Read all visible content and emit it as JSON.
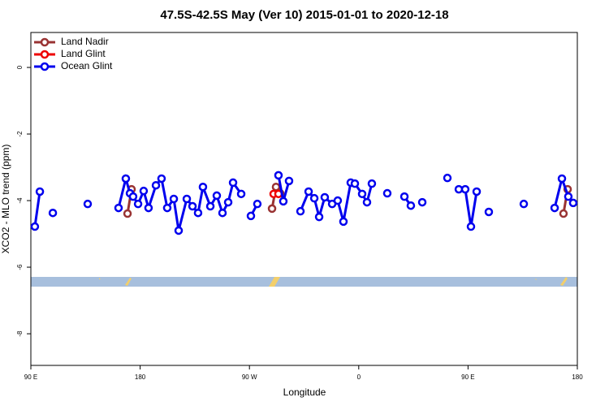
{
  "chart_data": {
    "type": "line",
    "title": "47.5S-42.5S May (Ver 10)   2015-01-01 to 2020-12-18",
    "x_label": "Longitude",
    "y_label": "XCO2 - MLO trend (ppm)",
    "xlim": [
      90,
      540
    ],
    "ylim": [
      -8.95,
      1.05
    ],
    "xticks": [
      {
        "value": 90,
        "label": "90 E"
      },
      {
        "value": 180,
        "label": "180"
      },
      {
        "value": 270,
        "label": "90 W"
      },
      {
        "value": 360,
        "label": "0"
      },
      {
        "value": 450,
        "label": "90 E"
      },
      {
        "value": 540,
        "label": "180"
      }
    ],
    "yticks": [
      0,
      -2,
      -4,
      -6,
      -8
    ],
    "legend": "top-left",
    "series": [
      {
        "name": "Land Nadir",
        "color": "#993333",
        "x": [
          169.6,
          172.9,
          null,
          288.6,
          291.9,
          295.3,
          null,
          528.6,
          532.0
        ],
        "values": [
          -4.39,
          -3.66,
          null,
          -4.24,
          -3.59,
          -3.78,
          null,
          -4.39,
          -3.66
        ]
      },
      {
        "name": "Land Glint",
        "color": "#ee0000",
        "x": [
          289.9,
          293.9
        ],
        "values": [
          -3.8,
          -3.8
        ]
      },
      {
        "name": "Ocean Glint",
        "color": "#0000ee",
        "x": [
          93.3,
          97.4,
          null,
          108.1,
          null,
          136.8,
          null,
          162.2,
          168.2,
          171.6,
          174.2,
          178.3,
          182.9,
          186.9,
          193.0,
          197.6,
          202.3,
          207.7,
          211.7,
          218.4,
          223.1,
          227.7,
          231.7,
          237.8,
          243.1,
          247.8,
          252.5,
          256.5,
          263.2,
          null,
          271.2,
          276.5,
          null,
          293.9,
          297.9,
          302.6,
          null,
          312.0,
          318.7,
          323.4,
          327.4,
          332.0,
          338.1,
          342.7,
          347.4,
          353.4,
          356.8,
          362.8,
          366.8,
          370.8,
          null,
          383.5,
          null,
          397.6,
          402.9,
          null,
          412.3,
          null,
          433.0,
          null,
          442.4,
          447.7,
          452.4,
          457.1,
          null,
          467.1,
          null,
          495.9,
          null,
          521.3,
          527.3,
          532.6,
          536.6
        ],
        "values": [
          -4.78,
          -3.73,
          null,
          -4.37,
          null,
          -4.1,
          null,
          -4.22,
          -3.34,
          -3.78,
          -3.88,
          -4.1,
          -3.71,
          -4.22,
          -3.54,
          -3.34,
          -4.22,
          -3.95,
          -4.9,
          -3.95,
          -4.17,
          -4.37,
          -3.59,
          -4.17,
          -3.85,
          -4.37,
          -4.05,
          -3.46,
          -3.8,
          null,
          -4.46,
          -4.1,
          null,
          -3.24,
          -4.02,
          -3.41,
          null,
          -4.32,
          -3.73,
          -3.93,
          -4.49,
          -3.9,
          -4.1,
          -4.0,
          -4.63,
          -3.46,
          -3.49,
          -3.8,
          -4.05,
          -3.49,
          null,
          -3.78,
          null,
          -3.88,
          -4.15,
          null,
          -4.05,
          null,
          -3.32,
          null,
          -3.66,
          -3.66,
          -4.78,
          -3.73,
          null,
          -4.34,
          null,
          -4.1,
          null,
          -4.22,
          -3.34,
          -3.88,
          -4.07
        ]
      }
    ]
  }
}
